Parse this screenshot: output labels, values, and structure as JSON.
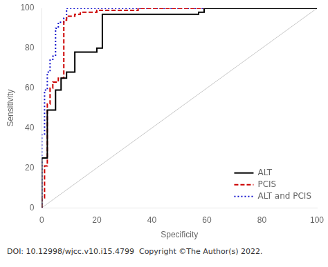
{
  "chart_data": {
    "type": "line",
    "xlabel": "Specificity",
    "ylabel": "Sensitivity",
    "xlim": [
      0,
      100
    ],
    "ylim": [
      0,
      100
    ],
    "xticks": [
      0,
      20,
      40,
      60,
      80,
      100
    ],
    "yticks": [
      0,
      20,
      40,
      60,
      80,
      100
    ],
    "grid": false,
    "legend": "lower right",
    "annotations": [
      "DOI: 10.12998/wjcc.v10.i15.4799  Copyright ©The Author(s) 2022."
    ],
    "series": [
      {
        "x": [
          0,
          100
        ],
        "values": [
          0,
          100
        ],
        "color": "#c8c8c8",
        "line_style": "solid"
      },
      {
        "name": "ALT",
        "color": "#000000",
        "line_style": "solid",
        "x": [
          0,
          0,
          2,
          2,
          5,
          5,
          7,
          7,
          9,
          9,
          12,
          12,
          14,
          14,
          20,
          20,
          22,
          22,
          57,
          57,
          59,
          59,
          62,
          62,
          93,
          93,
          100
        ],
        "values": [
          0,
          25,
          25,
          49,
          49,
          59,
          59,
          65,
          65,
          68,
          68,
          78,
          78,
          78,
          78,
          80,
          80,
          97,
          97,
          98,
          98,
          100,
          100,
          100,
          100,
          100,
          100
        ]
      },
      {
        "name": "PCIS",
        "color": "#cc0000",
        "line_style": "dashed",
        "x": [
          0,
          0,
          1,
          1,
          2,
          2,
          3,
          3,
          4,
          4,
          6,
          6,
          8,
          8,
          9,
          9,
          12,
          12,
          14,
          14,
          20,
          20,
          35,
          35,
          100
        ],
        "values": [
          0,
          5,
          5,
          21,
          21,
          52,
          52,
          60,
          60,
          63,
          63,
          65,
          65,
          94,
          94,
          96,
          96,
          97,
          97,
          98,
          98,
          99,
          99,
          100,
          100
        ]
      },
      {
        "name": "ALT and PCIS",
        "color": "#1010cc",
        "line_style": "dotted",
        "x": [
          0,
          0,
          1,
          1,
          2,
          2,
          3,
          3,
          4,
          4,
          5,
          5,
          6,
          6,
          8,
          8,
          9,
          9,
          11,
          11,
          14,
          14,
          100
        ],
        "values": [
          0,
          37,
          37,
          59,
          59,
          68,
          68,
          74,
          74,
          76,
          76,
          90,
          90,
          93,
          93,
          95,
          95,
          100,
          100,
          100,
          100,
          100,
          100
        ]
      }
    ]
  }
}
